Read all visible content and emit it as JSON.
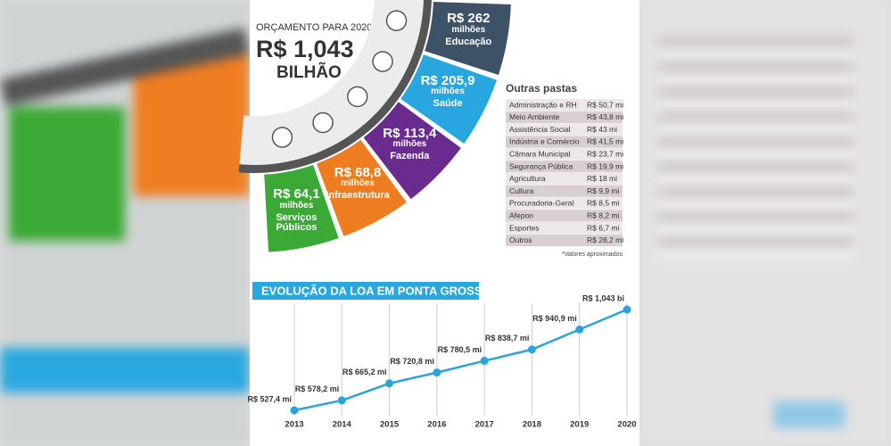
{
  "header": {
    "subtitle": "ORÇAMENTO PARA 2020",
    "amount": "R$ 1,043",
    "unit": "BILHÃO"
  },
  "segments": [
    {
      "value": "R$ 262",
      "unit": "milhões",
      "label": "Educação",
      "color": "#3d5266"
    },
    {
      "value": "R$ 205,9",
      "unit": "milhões",
      "label": "Saúde",
      "color": "#27a6df"
    },
    {
      "value": "R$ 113,4",
      "unit": "milhões",
      "label": "Fazenda",
      "color": "#6a2b8f"
    },
    {
      "value": "R$ 68,8",
      "unit": "milhões",
      "label": "Infraestrutura",
      "color": "#ee7d22"
    },
    {
      "value": "R$ 64,1",
      "unit": "milhões",
      "label": "Serviços Públicos",
      "color": "#3aa935"
    }
  ],
  "other_departments": {
    "title": "Outras pastas",
    "rows": [
      [
        "Administração e RH",
        "R$ 50,7 mi"
      ],
      [
        "Meio Ambiente",
        "R$ 43,8 mi"
      ],
      [
        "Assistência Social",
        "R$ 43 mi"
      ],
      [
        "Indústria e Comércio",
        "R$ 41,5 mi"
      ],
      [
        "Câmara Municipal",
        "R$ 23,7 mi"
      ],
      [
        "Segurança Pública",
        "R$ 19,9 mi"
      ],
      [
        "Agricultura",
        "R$ 18 mi"
      ],
      [
        "Cultura",
        "R$ 9,9 mi"
      ],
      [
        "Procuradoria-Geral",
        "R$ 8,5 mi"
      ],
      [
        "Afepon",
        "R$ 8,2 mi"
      ],
      [
        "Esportes",
        "R$ 6,7 mi"
      ],
      [
        "Outros",
        "R$ 28,2 mi"
      ]
    ],
    "note": "*Valores aproximados"
  },
  "chart_data": {
    "type": "line",
    "title": "EVOLUÇÃO DA LOA EM PONTA GROSSA",
    "categories": [
      "2013",
      "2014",
      "2015",
      "2016",
      "2017",
      "2018",
      "2019",
      "2020"
    ],
    "values": [
      527.4,
      578.2,
      665.2,
      720.8,
      780.5,
      838.7,
      940.9,
      1043
    ],
    "value_labels": [
      "R$ 527,4 mi",
      "R$ 578,2 mi",
      "R$ 665,2 mi",
      "R$ 720,8 mi",
      "R$ 780,5 mi",
      "R$ 838,7 mi",
      "R$ 940,9 mi",
      "R$ 1,043 bi"
    ],
    "color": "#29a3db"
  }
}
